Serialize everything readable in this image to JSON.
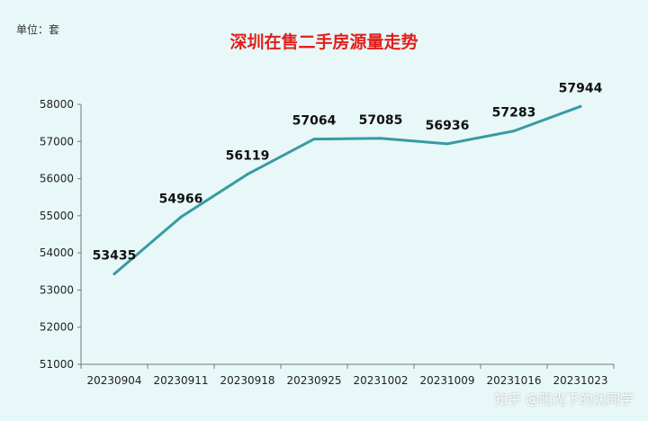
{
  "unit_label": "单位：套",
  "watermark": "知乎 @阳光下的沈同学",
  "colors": {
    "background": "#e8f8f8",
    "title": "#e0201c",
    "line": "#3a9aa3"
  },
  "chart_data": {
    "type": "line",
    "title": "深圳在售二手房源量走势",
    "xlabel": "",
    "ylabel": "",
    "categories": [
      "20230904",
      "20230911",
      "20230918",
      "20230925",
      "20231002",
      "20231009",
      "20231016",
      "20231023"
    ],
    "series": [
      {
        "values": [
          53435,
          54966,
          56119,
          57064,
          57085,
          56936,
          57283,
          57944
        ]
      }
    ],
    "ylim": [
      51000,
      58000
    ],
    "yticks": [
      51000,
      52000,
      53000,
      54000,
      55000,
      56000,
      57000,
      58000
    ],
    "grid": false,
    "data_labels": true,
    "legend": "none"
  }
}
